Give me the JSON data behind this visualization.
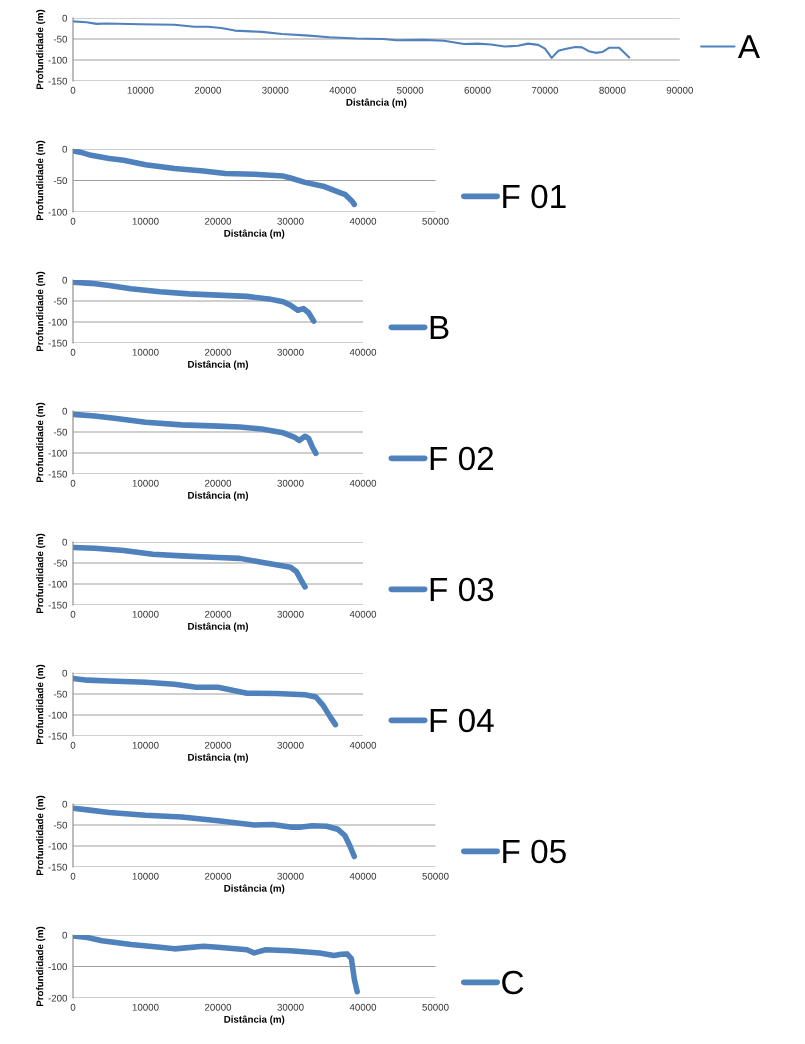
{
  "chart_data": [
    {
      "type": "line",
      "xlabel": "Distância (m)",
      "ylabel": "Profundidade (m)",
      "xlim": [
        0,
        90000
      ],
      "xticks": [
        0,
        10000,
        20000,
        30000,
        40000,
        50000,
        60000,
        70000,
        80000,
        90000
      ],
      "ylim": [
        -150,
        0
      ],
      "yticks": [
        -150,
        -100,
        -50,
        0
      ],
      "grid": "y",
      "legend": "right",
      "series": [
        {
          "name": "A",
          "color": "#4f81bd",
          "x": [
            0,
            2000,
            3500,
            5000,
            10000,
            15000,
            18000,
            20000,
            22000,
            24000,
            28000,
            31000,
            35000,
            38000,
            42000,
            46000,
            48000,
            52000,
            55000,
            58000,
            60000,
            62000,
            64000,
            66000,
            67500,
            69000,
            70000,
            71000,
            72000,
            73000,
            74500,
            75500,
            76500,
            77500,
            78500,
            79500,
            81000,
            82500
          ],
          "values": [
            -8,
            -10,
            -14,
            -13,
            -15,
            -16,
            -21,
            -21,
            -24,
            -30,
            -33,
            -38,
            -42,
            -46,
            -49,
            -50,
            -53,
            -52,
            -54,
            -62,
            -61,
            -63,
            -68,
            -66,
            -61,
            -64,
            -73,
            -95,
            -78,
            -74,
            -69,
            -70,
            -79,
            -83,
            -81,
            -71,
            -71,
            -94
          ]
        }
      ]
    },
    {
      "type": "line",
      "xlabel": "Distância (m)",
      "ylabel": "Profundidade (m)",
      "xlim": [
        0,
        50000
      ],
      "xticks": [
        0,
        10000,
        20000,
        30000,
        40000,
        50000
      ],
      "ylim": [
        -100,
        0
      ],
      "yticks": [
        -100,
        -50,
        0
      ],
      "grid": "y",
      "legend": "right",
      "series": [
        {
          "name": "F 01",
          "color": "#4f81bd",
          "x": [
            0,
            1000,
            2500,
            5000,
            7000,
            10000,
            14000,
            18000,
            21000,
            25000,
            29000,
            30000,
            32000,
            34500,
            37000,
            37500,
            38500,
            38800
          ],
          "values": [
            -3,
            -5,
            -10,
            -15,
            -18,
            -25,
            -31,
            -35,
            -39,
            -40,
            -43,
            -46,
            -53,
            -59,
            -70,
            -72,
            -83,
            -88
          ]
        }
      ]
    },
    {
      "type": "line",
      "xlabel": "Distância (m)",
      "ylabel": "Profundidade (m)",
      "xlim": [
        0,
        40000
      ],
      "xticks": [
        0,
        10000,
        20000,
        30000,
        40000
      ],
      "ylim": [
        -150,
        0
      ],
      "yticks": [
        -150,
        -100,
        -50,
        0
      ],
      "grid": "y",
      "legend": "right",
      "series": [
        {
          "name": "B",
          "color": "#4f81bd",
          "x": [
            0,
            2500,
            5000,
            8000,
            12000,
            16000,
            20000,
            24000,
            27000,
            29000,
            30000,
            31000,
            31800,
            32500,
            33200
          ],
          "values": [
            -5,
            -8,
            -13,
            -21,
            -28,
            -33,
            -36,
            -39,
            -45,
            -52,
            -60,
            -72,
            -68,
            -78,
            -98
          ]
        }
      ]
    },
    {
      "type": "line",
      "xlabel": "Distância (m)",
      "ylabel": "Profundidade (m)",
      "xlim": [
        0,
        40000
      ],
      "xticks": [
        0,
        10000,
        20000,
        30000,
        40000
      ],
      "ylim": [
        -150,
        0
      ],
      "yticks": [
        -150,
        -100,
        -50,
        0
      ],
      "grid": "y",
      "legend": "right",
      "series": [
        {
          "name": "F 02",
          "color": "#4f81bd",
          "x": [
            0,
            3000,
            6000,
            10000,
            15000,
            20000,
            23000,
            26000,
            29000,
            30500,
            31200,
            32000,
            32500,
            33000,
            33500
          ],
          "values": [
            -8,
            -12,
            -18,
            -27,
            -33,
            -36,
            -38,
            -43,
            -52,
            -62,
            -70,
            -60,
            -65,
            -85,
            -101
          ]
        }
      ]
    },
    {
      "type": "line",
      "xlabel": "Distância (m)",
      "ylabel": "Profundidade (m)",
      "xlim": [
        0,
        40000
      ],
      "xticks": [
        0,
        10000,
        20000,
        30000,
        40000
      ],
      "ylim": [
        -150,
        0
      ],
      "yticks": [
        -150,
        -100,
        -50,
        0
      ],
      "grid": "y",
      "legend": "right",
      "series": [
        {
          "name": "F 03",
          "color": "#4f81bd",
          "x": [
            0,
            3000,
            7000,
            11000,
            15000,
            20000,
            23000,
            26000,
            30000,
            30800,
            31500,
            32000
          ],
          "values": [
            -13,
            -15,
            -20,
            -29,
            -33,
            -37,
            -39,
            -48,
            -60,
            -70,
            -92,
            -107
          ]
        }
      ]
    },
    {
      "type": "line",
      "xlabel": "Distância (m)",
      "ylabel": "Profundidade (m)",
      "xlim": [
        0,
        40000
      ],
      "xticks": [
        0,
        10000,
        20000,
        30000,
        40000
      ],
      "ylim": [
        -150,
        0
      ],
      "yticks": [
        -150,
        -100,
        -50,
        0
      ],
      "grid": "y",
      "legend": "right",
      "series": [
        {
          "name": "F 04",
          "color": "#4f81bd",
          "x": [
            0,
            2000,
            5000,
            10000,
            14000,
            17000,
            20000,
            22000,
            24000,
            28000,
            32000,
            33500,
            34500,
            35500,
            36200
          ],
          "values": [
            -13,
            -17,
            -19,
            -22,
            -27,
            -34,
            -34,
            -41,
            -48,
            -49,
            -52,
            -57,
            -77,
            -105,
            -123
          ]
        }
      ]
    },
    {
      "type": "line",
      "xlabel": "Distância (m)",
      "ylabel": "Profundidade (m)",
      "xlim": [
        0,
        50000
      ],
      "xticks": [
        0,
        10000,
        20000,
        30000,
        40000,
        50000
      ],
      "ylim": [
        -150,
        0
      ],
      "yticks": [
        -150,
        -100,
        -50,
        0
      ],
      "grid": "y",
      "legend": "right",
      "series": [
        {
          "name": "F 05",
          "color": "#4f81bd",
          "x": [
            0,
            2000,
            5000,
            10000,
            15000,
            20000,
            25000,
            27500,
            30000,
            31500,
            33000,
            35000,
            36500,
            37500,
            38200,
            38800
          ],
          "values": [
            -10,
            -14,
            -20,
            -27,
            -31,
            -40,
            -50,
            -49,
            -55,
            -55,
            -52,
            -53,
            -60,
            -75,
            -100,
            -125
          ]
        }
      ]
    },
    {
      "type": "line",
      "xlabel": "Distância (m)",
      "ylabel": "Profundidade (m)",
      "xlim": [
        0,
        50000
      ],
      "xticks": [
        0,
        10000,
        20000,
        30000,
        40000,
        50000
      ],
      "ylim": [
        -200,
        0
      ],
      "yticks": [
        -200,
        -100,
        0
      ],
      "grid": "y",
      "legend": "right",
      "series": [
        {
          "name": "C",
          "color": "#4f81bd",
          "x": [
            0,
            2000,
            4000,
            8000,
            12000,
            14000,
            18000,
            20000,
            24000,
            25000,
            26500,
            30000,
            34000,
            36000,
            37000,
            37800,
            38400,
            38800,
            39200
          ],
          "values": [
            -3,
            -8,
            -18,
            -30,
            -39,
            -44,
            -36,
            -39,
            -47,
            -57,
            -47,
            -50,
            -57,
            -65,
            -61,
            -60,
            -75,
            -140,
            -180
          ]
        }
      ]
    }
  ]
}
